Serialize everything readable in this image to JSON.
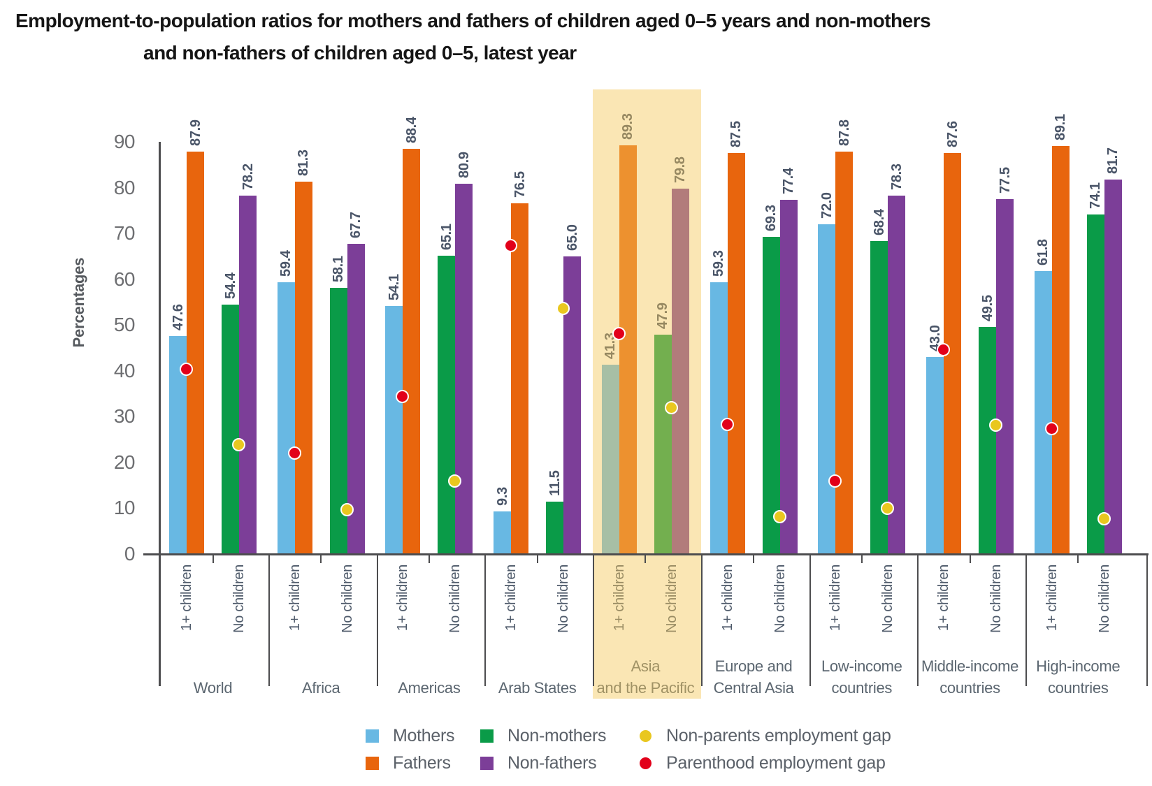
{
  "title_lines": [
    "Employment-to-population ratios for mothers and fathers of children aged 0–5 years and non-mothers",
    "and non-fathers of children aged 0–5, latest year"
  ],
  "chart_data": {
    "type": "bar",
    "title": "Employment-to-population ratios for mothers and fathers of children aged 0–5 years and non-mothers and non-fathers of children aged 0–5, latest year",
    "ylabel": "Percentages",
    "y_ticks": [
      "0",
      "10",
      "20",
      "30",
      "40",
      "50",
      "60",
      "70",
      "80",
      "90"
    ],
    "ylim": [
      0,
      90
    ],
    "grid": false,
    "subgroup_labels": [
      "1+ children",
      "No children"
    ],
    "series_names": [
      "Mothers",
      "Fathers",
      "Non-mothers",
      "Non-fathers"
    ],
    "groups": [
      {
        "region_lines": [
          "World"
        ],
        "mothers": "47.6",
        "fathers": "87.9",
        "non_mothers": "54.4",
        "non_fathers": "78.2",
        "parenthood_gap": 40.3,
        "non_parents_gap": 23.8,
        "highlighted": false
      },
      {
        "region_lines": [
          "Africa"
        ],
        "mothers": "59.4",
        "fathers": "81.3",
        "non_mothers": "58.1",
        "non_fathers": "67.7",
        "parenthood_gap": 21.9,
        "non_parents_gap": 9.6,
        "highlighted": false
      },
      {
        "region_lines": [
          "Americas"
        ],
        "mothers": "54.1",
        "fathers": "88.4",
        "non_mothers": "65.1",
        "non_fathers": "80.9",
        "parenthood_gap": 34.3,
        "non_parents_gap": 15.8,
        "highlighted": false
      },
      {
        "region_lines": [
          "Arab States"
        ],
        "mothers": "9.3",
        "fathers": "76.5",
        "non_mothers": "11.5",
        "non_fathers": "65.0",
        "parenthood_gap": 67.2,
        "non_parents_gap": 53.5,
        "highlighted": false
      },
      {
        "region_lines": [
          "Asia",
          "and the Pacific"
        ],
        "mothers": "41.3",
        "fathers": "89.3",
        "non_mothers": "47.9",
        "non_fathers": "79.8",
        "parenthood_gap": 48.0,
        "non_parents_gap": 31.9,
        "highlighted": true
      },
      {
        "region_lines": [
          "Europe and",
          "Central Asia"
        ],
        "mothers": "59.3",
        "fathers": "87.5",
        "non_mothers": "69.3",
        "non_fathers": "77.4",
        "parenthood_gap": 28.2,
        "non_parents_gap": 8.1,
        "highlighted": false
      },
      {
        "region_lines": [
          "Low-income",
          "countries"
        ],
        "mothers": "72.0",
        "fathers": "87.8",
        "non_mothers": "68.4",
        "non_fathers": "78.3",
        "parenthood_gap": 15.8,
        "non_parents_gap": 9.9,
        "highlighted": false
      },
      {
        "region_lines": [
          "Middle-income",
          "countries"
        ],
        "mothers": "43.0",
        "fathers": "87.6",
        "non_mothers": "49.5",
        "non_fathers": "77.5",
        "parenthood_gap": 44.6,
        "non_parents_gap": 28.0,
        "highlighted": false
      },
      {
        "region_lines": [
          "High-income",
          "countries"
        ],
        "mothers": "61.8",
        "fathers": "89.1",
        "non_mothers": "74.1",
        "non_fathers": "81.7",
        "parenthood_gap": 27.3,
        "non_parents_gap": 7.6,
        "highlighted": false
      }
    ],
    "legend": {
      "rows": [
        [
          {
            "label": "Mothers",
            "shape": "square",
            "color": "#68B8E3"
          },
          {
            "label": "Non-mothers",
            "shape": "square",
            "color": "#0A9B48"
          },
          {
            "label": "Non-parents employment gap",
            "shape": "dot",
            "color": "#E9C71F"
          }
        ],
        [
          {
            "label": "Fathers",
            "shape": "square",
            "color": "#E8650D"
          },
          {
            "label": "Non-fathers",
            "shape": "square",
            "color": "#7C3E98"
          },
          {
            "label": "Parenthood employment gap",
            "shape": "dot",
            "color": "#E2001A"
          }
        ]
      ],
      "legend_position": "bottom-center"
    },
    "colors": {
      "mothers": "#68B8E3",
      "fathers": "#E8650D",
      "non_mothers": "#0A9B48",
      "non_fathers": "#7C3E98",
      "parenthood_gap_dot": "#E2001A",
      "non_parents_gap_dot": "#E9C71F",
      "highlight_overlay": "rgba(244,200,89,0.45)",
      "axis": "#4D4D4F"
    }
  }
}
